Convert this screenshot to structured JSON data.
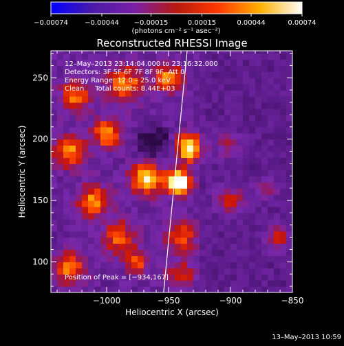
{
  "chart_data": {
    "type": "heatmap",
    "title": "Reconstructed RHESSI Image",
    "xlabel": "Heliocentric X (arcsec)",
    "ylabel": "Heliocentric Y (arcsec)",
    "xlim": [
      -1045,
      -850
    ],
    "ylim": [
      75,
      272
    ],
    "x_ticks": [
      -1000,
      -950,
      -900,
      -850
    ],
    "x_tick_labels": [
      "−1000",
      "−950",
      "−900",
      "−850"
    ],
    "y_ticks": [
      100,
      150,
      200,
      250
    ],
    "y_tick_labels": [
      "100",
      "150",
      "200",
      "250"
    ],
    "colorbar": {
      "range": [
        -0.00074,
        0.00074
      ],
      "ticks": [
        -0.00074,
        -0.00044,
        -0.00015,
        0.00015,
        0.00044,
        0.00074
      ],
      "tick_labels": [
        "−0.00074",
        "−0.00044",
        "−0.00015",
        "0.00015",
        "0.00044",
        "0.00074"
      ],
      "units_label": "(photons cm⁻² s⁻¹ asec⁻²)",
      "colors": [
        "#0000ff",
        "#4b1aa8",
        "#7a1fa5",
        "#b7190f",
        "#ff3a00",
        "#ffb000",
        "#ffffff"
      ]
    },
    "annotations": [
      "12–May–2013 23:14:04.000 to 23:16:32.000",
      "Detectors: 3F 5F 6F 7F 8F 9F, Att 0",
      "Energy Range: 12.0 – 25.0 keV",
      "Clean     Total counts: 8.44E+03"
    ],
    "peak_label": "Position of Peak = [−934,167]",
    "peak_position": [
      -934,
      167
    ],
    "limb_line": [
      [
        -935,
        272
      ],
      [
        -954,
        75
      ]
    ],
    "blobs": [
      {
        "x": -942,
        "y": 165,
        "sigma": 7,
        "amp": 1.0
      },
      {
        "x": -933,
        "y": 193,
        "sigma": 8,
        "amp": 0.75
      },
      {
        "x": -968,
        "y": 168,
        "sigma": 9,
        "amp": 0.7
      },
      {
        "x": -1000,
        "y": 205,
        "sigma": 8,
        "amp": 0.6
      },
      {
        "x": -985,
        "y": 245,
        "sigma": 10,
        "amp": 0.55
      },
      {
        "x": -1025,
        "y": 235,
        "sigma": 9,
        "amp": 0.5
      },
      {
        "x": -1030,
        "y": 190,
        "sigma": 9,
        "amp": 0.55
      },
      {
        "x": -1010,
        "y": 150,
        "sigma": 9,
        "amp": 0.55
      },
      {
        "x": -990,
        "y": 120,
        "sigma": 10,
        "amp": 0.45
      },
      {
        "x": -1030,
        "y": 95,
        "sigma": 9,
        "amp": 0.5
      },
      {
        "x": -950,
        "y": 250,
        "sigma": 8,
        "amp": 0.55
      },
      {
        "x": -940,
        "y": 120,
        "sigma": 9,
        "amp": 0.45
      },
      {
        "x": -900,
        "y": 150,
        "sigma": 8,
        "amp": 0.45
      },
      {
        "x": -902,
        "y": 195,
        "sigma": 7,
        "amp": 0.35
      },
      {
        "x": -862,
        "y": 120,
        "sigma": 7,
        "amp": 0.45
      },
      {
        "x": -870,
        "y": 160,
        "sigma": 6,
        "amp": 0.3
      },
      {
        "x": -940,
        "y": 90,
        "sigma": 8,
        "amp": 0.35
      },
      {
        "x": -975,
        "y": 100,
        "sigma": 7,
        "amp": 0.4
      }
    ]
  },
  "footer": {
    "timestamp": "13–May–2013 10:59"
  }
}
